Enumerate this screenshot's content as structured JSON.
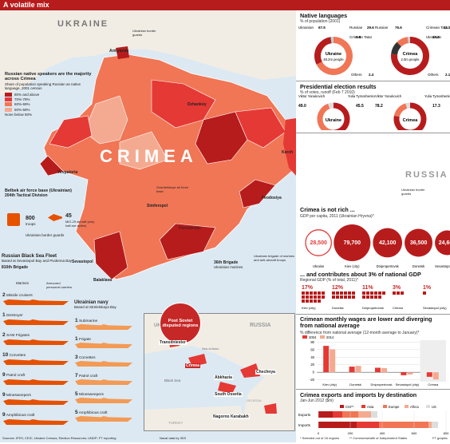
{
  "banner": {
    "title": "A volatile mix"
  },
  "map": {
    "country_label": "UKRAINE",
    "crimea_label": "CRIMEA",
    "russia_label": "RUSSIA",
    "legend": {
      "title": "Russian native speakers are the majority across Crimea",
      "subtitle": "Share of population speaking Russian as native language, 2001 census",
      "items": [
        {
          "label": "80% and above",
          "color": "#b71c1c"
        },
        {
          "label": "70%-79%",
          "color": "#e53935"
        },
        {
          "label": "60%-69%",
          "color": "#f07656"
        },
        {
          "label": "50%-59%",
          "color": "#f4aa90"
        },
        {
          "label": "None below 50%",
          "color": ""
        }
      ]
    },
    "cities": [
      "Armyansk",
      "Dzhankoy",
      "Yevpatoria",
      "Simferopol",
      "Kerch",
      "Feodosiya",
      "Perevalnoye",
      "Sevastopol",
      "Balaklava"
    ],
    "gvardeiskoye": "Gvardeiskoye air force base",
    "ukr_border_guards": "Ukrainian border guards",
    "belbek": {
      "title": "Belbek air force base (Ukrainian)",
      "unit": "204th Tactical Division",
      "troops_n": "800",
      "troops_label": "troops",
      "aircraft_n": "45",
      "aircraft_label": "MiG-29 aircraft (only half are active)",
      "guards": "Ukrainian border guards"
    },
    "brigade36": {
      "title": "36th Brigade",
      "sub": "Ukrainian marines"
    },
    "brigade_marines": "Ukrainian brigade of marines and anti-aircraft troops",
    "fleet": {
      "title": "Russian Black Sea Fleet",
      "sub": "Based at Sevastopol Bay and Pivdenna Bay",
      "brigade": "810th Brigade",
      "marines": "Marines",
      "apc": "Armoured personnel carriers",
      "rows": [
        {
          "n": "2",
          "label": "Missile cruisers"
        },
        {
          "n": "1",
          "label": "Destroyer"
        },
        {
          "n": "2",
          "label": "SAM Frigates"
        },
        {
          "n": "10",
          "label": "Corvettes"
        },
        {
          "n": "9",
          "label": "Patrol craft"
        },
        {
          "n": "9",
          "label": "Minesweepers"
        },
        {
          "n": "9",
          "label": "Amphibious craft"
        }
      ]
    },
    "navy": {
      "title": "Ukrainian navy",
      "sub": "Based at Streletskaya Bay",
      "rows": [
        {
          "n": "1",
          "label": "Submarine"
        },
        {
          "n": "1",
          "label": "Frigate"
        },
        {
          "n": "3",
          "label": "Corvettes"
        },
        {
          "n": "7",
          "label": "Patrol craft"
        },
        {
          "n": "5",
          "label": "Minesweepers"
        },
        {
          "n": "5",
          "label": "Amphibious craft"
        }
      ]
    },
    "disputed": {
      "badge": "Post Soviet disputed regions",
      "labels": [
        "Transdniester",
        "Crimea",
        "Abkhazia",
        "South Ossetia",
        "Chechnya",
        "Nagorno Karabakh"
      ],
      "places": {
        "ukraine": "UKRAINE",
        "russia": "RUSSIA",
        "black_sea": "Black Sea",
        "sea_of_azov": "Sea of Azov",
        "turkey": "TURKEY",
        "georgia": "GEORGIA"
      }
    }
  },
  "languages": {
    "title": "Native languages",
    "sub": "% of population (2001)",
    "ukraine": {
      "name": "Ukraine",
      "center": "48.2m people",
      "segs": [
        {
          "label": "Ukrainian",
          "value": "67.5",
          "num": 67.5
        },
        {
          "label": "Russian",
          "value": "29.6",
          "num": 29.6
        },
        {
          "label": "Crimean Tatar",
          "value": "0.5",
          "num": 0.5
        },
        {
          "label": "Others",
          "value": "2.4",
          "num": 2.4
        }
      ]
    },
    "crimea": {
      "name": "Crimea",
      "center": "2.0m people",
      "segs": [
        {
          "label": "Russian",
          "value": "76.6",
          "num": 76.6
        },
        {
          "label": "Crimean Tatar",
          "value": "11.3",
          "num": 11.3
        },
        {
          "label": "Ukrainian",
          "value": "10.0",
          "num": 10.0
        },
        {
          "label": "Others",
          "value": "2.1",
          "num": 2.1
        }
      ]
    }
  },
  "election": {
    "title": "Presidential election results",
    "sub": "% of votes, runoff (Feb 7 2010)",
    "ukraine": {
      "name": "Ukraine",
      "a_label": "Viktor Yanukovich",
      "a_val": "49.0",
      "a_num": 49.0,
      "b_label": "Yulia Tymoshenko",
      "b_val": "45.5",
      "b_num": 45.5
    },
    "crimea": {
      "name": "Crimea",
      "a_label": "Viktor Yanukovich",
      "a_val": "78.2",
      "a_num": 78.2,
      "b_label": "Yulia Tymoshenko",
      "b_val": "17.3",
      "b_num": 17.3
    }
  },
  "gdp": {
    "title": "Crimea is not rich ...",
    "sub": "GDP per capita, 2011 (Ukrainian Hryvna)*",
    "items": [
      {
        "label": "Ukraine",
        "value": "28,500",
        "num": 28500,
        "style": "outline"
      },
      {
        "label": "Kiev (city)",
        "value": "79,700",
        "num": 79700,
        "style": "fill"
      },
      {
        "label": "Dnipropetrovsk",
        "value": "42,100",
        "num": 42100,
        "style": "fill"
      },
      {
        "label": "Donetsk",
        "value": "36,500",
        "num": 36500,
        "style": "fill"
      },
      {
        "label": "Sevastopol (city)",
        "value": "24,600",
        "num": 24600,
        "style": "fill"
      },
      {
        "label": "Crimea",
        "value": "19,500",
        "num": 19500,
        "style": "fill"
      }
    ]
  },
  "share": {
    "title": "... and contributes about 3% of national GDP",
    "sub": "Regional GDP (% of total, 2011)*",
    "items": [
      {
        "label": "Kiev (city)",
        "value": "17%",
        "num": 17
      },
      {
        "label": "Donetsk",
        "value": "12%",
        "num": 12
      },
      {
        "label": "Dnipropetrovsk",
        "value": "11%",
        "num": 11
      },
      {
        "label": "Crimea",
        "value": "3%",
        "num": 3
      },
      {
        "label": "Sevastopol (city)",
        "value": "1%",
        "num": 1
      }
    ]
  },
  "wages": {
    "title": "Crimean monthly wages are lower and diverging from national average",
    "sub": "% difference from national average (12-month average to January)*",
    "legend": [
      "2004",
      "2014"
    ],
    "colors": [
      "#e53935",
      "#f4aa90"
    ],
    "yticks": [
      "80",
      "60",
      "40",
      "20",
      "0",
      "-20"
    ],
    "categories": [
      "Kiev (city)",
      "Donetsk",
      "Dnipropetrovsk",
      "Sevastopol (city)",
      "Crimea"
    ],
    "series": [
      {
        "name": "2004",
        "values": [
          70,
          15,
          12,
          -8,
          -12
        ]
      },
      {
        "name": "2014",
        "values": [
          61,
          17,
          11,
          -6,
          -19
        ]
      }
    ],
    "ylim": [
      -25,
      85
    ]
  },
  "trade": {
    "title": "Crimea exports and imports by destination",
    "sub": "Jan-Jun 2012 ($m)",
    "legend": [
      {
        "label": "CIS**",
        "color": "#b71c1c"
      },
      {
        "label": "Asia",
        "color": "#e53935"
      },
      {
        "label": "Europe",
        "color": "#f07656"
      },
      {
        "label": "Africa",
        "color": "#f4aa90"
      },
      {
        "label": "US",
        "color": "#ddd"
      }
    ],
    "xticks": [
      "0",
      "200",
      "400",
      "600",
      "800"
    ],
    "xlim": [
      0,
      800
    ],
    "rows": [
      {
        "label": "Exports",
        "values": [
          90,
          60,
          100,
          80,
          40
        ]
      },
      {
        "label": "Imports",
        "values": [
          240,
          140,
          310,
          20,
          40
        ]
      }
    ]
  },
  "footnotes": {
    "a": "* Selected out of 16 regions",
    "b": "** Commonwealth of Independent States"
  },
  "sources": {
    "left": "Sources: IFES; CEIC; Ukraine Census; Election Resources; UNDP; FT reporting",
    "mid": "Naval data by IISS",
    "right": "FT graphic"
  }
}
